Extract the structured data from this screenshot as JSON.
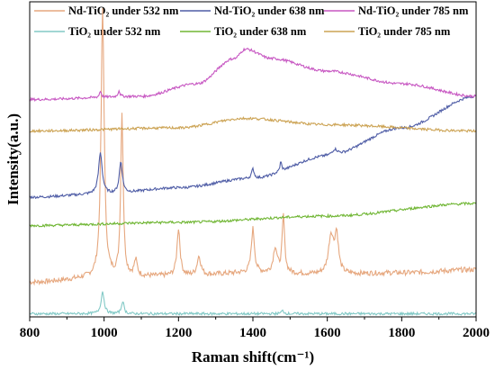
{
  "chart_data": {
    "type": "line",
    "title": "",
    "xlabel": "Raman shift(cm⁻¹)",
    "ylabel": "Intensity(a.u.)",
    "xlim": [
      800,
      2000
    ],
    "xticks": [
      "800",
      "1000",
      "1200",
      "1400",
      "1600",
      "1800",
      "2000"
    ],
    "yticks_shown": false,
    "legend_position": "top",
    "series": [
      {
        "name": "Nd-TiO₂ under 532 nm",
        "color": "#e6a77e",
        "baseline": [
          [
            800,
            0.11
          ],
          [
            1000,
            0.125
          ],
          [
            1200,
            0.13
          ],
          [
            1400,
            0.14
          ],
          [
            1600,
            0.135
          ],
          [
            1800,
            0.14
          ],
          [
            2000,
            0.15
          ]
        ],
        "peaks": [
          [
            996,
            0.85,
            5
          ],
          [
            1048,
            0.52,
            4
          ],
          [
            1085,
            0.05,
            5
          ],
          [
            1200,
            0.15,
            5
          ],
          [
            1255,
            0.06,
            6
          ],
          [
            1400,
            0.14,
            5
          ],
          [
            1460,
            0.08,
            6
          ],
          [
            1482,
            0.18,
            4
          ],
          [
            1610,
            0.12,
            8
          ],
          [
            1625,
            0.12,
            6
          ]
        ]
      },
      {
        "name": "Nd-TiO₂ under 638 nm",
        "color": "#4f5da6",
        "baseline": [
          [
            800,
            0.38
          ],
          [
            1000,
            0.39
          ],
          [
            1200,
            0.41
          ],
          [
            1400,
            0.44
          ],
          [
            1600,
            0.51
          ],
          [
            1800,
            0.6
          ],
          [
            2000,
            0.7
          ]
        ],
        "peaks": [
          [
            990,
            0.13,
            6
          ],
          [
            1045,
            0.1,
            5
          ],
          [
            1400,
            0.03,
            4
          ],
          [
            1475,
            0.03,
            3
          ],
          [
            1620,
            0.02,
            10
          ]
        ]
      },
      {
        "name": "Nd-TiO₂ under 785 nm",
        "color": "#c757c2",
        "baseline": [
          [
            800,
            0.69
          ],
          [
            1100,
            0.7
          ],
          [
            1250,
            0.74
          ],
          [
            1350,
            0.82
          ],
          [
            1380,
            0.85
          ],
          [
            1450,
            0.82
          ],
          [
            1600,
            0.78
          ],
          [
            1800,
            0.74
          ],
          [
            2000,
            0.7
          ]
        ],
        "peaks": [
          [
            990,
            0.02,
            3
          ],
          [
            1040,
            0.02,
            3
          ]
        ]
      },
      {
        "name": "TiO₂ under 532 nm",
        "color": "#82c9c6",
        "baseline": [
          [
            800,
            0.01
          ],
          [
            2000,
            0.01
          ]
        ],
        "peaks": [
          [
            996,
            0.07,
            5
          ],
          [
            1050,
            0.04,
            4
          ],
          [
            1480,
            0.01,
            4
          ]
        ]
      },
      {
        "name": "TiO₂ under 638 nm",
        "color": "#70b634",
        "baseline": [
          [
            800,
            0.29
          ],
          [
            1200,
            0.3
          ],
          [
            1600,
            0.32
          ],
          [
            2000,
            0.36
          ]
        ],
        "peaks": []
      },
      {
        "name": "TiO₂ under 785 nm",
        "color": "#cca354",
        "baseline": [
          [
            800,
            0.59
          ],
          [
            1200,
            0.6
          ],
          [
            1380,
            0.63
          ],
          [
            1600,
            0.61
          ],
          [
            2000,
            0.59
          ]
        ],
        "peaks": []
      }
    ]
  }
}
